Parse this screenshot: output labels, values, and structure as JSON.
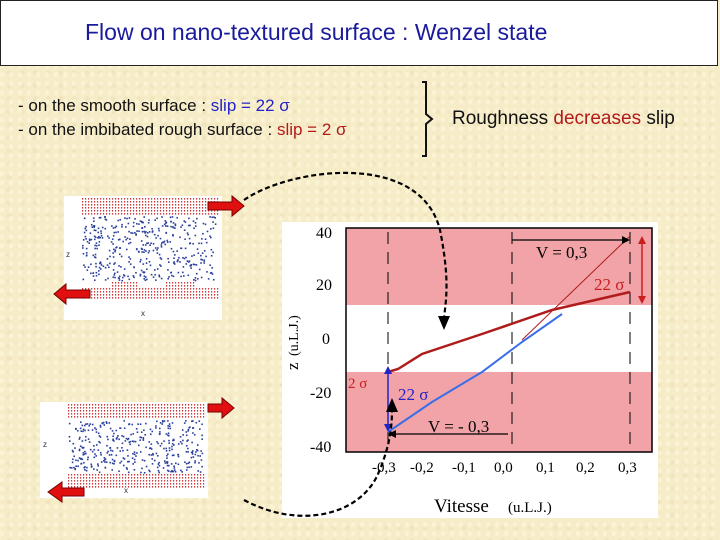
{
  "slide": {
    "title": "Flow on nano-textured surface : Wenzel state",
    "line1_prefix": "- on the smooth surface : ",
    "line1_value": "slip = 22 σ",
    "line2_prefix": "- on the imbibated rough surface : ",
    "line2_value": "slip = 2 σ",
    "conclusion_pre": "Roughness ",
    "conclusion_highlight": "decreases",
    "conclusion_post": " slip"
  },
  "simulations": {
    "top": {
      "x_label": "x",
      "z_label": "z"
    },
    "bottom": {
      "x_label": "x",
      "z_label": "z"
    }
  },
  "plot": {
    "y_axis_label": "z",
    "y_axis_units": "(u.L.J.)",
    "x_axis_label": "Vitesse",
    "x_axis_units": "(u.L.J.)",
    "y_ticks": [
      "40",
      "20",
      "0",
      "-20",
      "-40"
    ],
    "x_ticks": [
      "-0,3",
      "-0,2",
      "-0,1",
      "0,0",
      "0,1",
      "0,2",
      "0,3"
    ],
    "annotation_v_top": "V = 0,3",
    "annotation_v_bottom": "V = - 0,3",
    "annotation_slip_smooth_top": "22 σ",
    "annotation_slip_smooth_bottom": "22 σ",
    "annotation_slip_rough": "2 σ",
    "colors": {
      "rough_band": "#f2a3a8",
      "rough_profile": "#b01c1c",
      "smooth_profile": "#3a6ee8",
      "arrow": "#c81e1e"
    }
  }
}
